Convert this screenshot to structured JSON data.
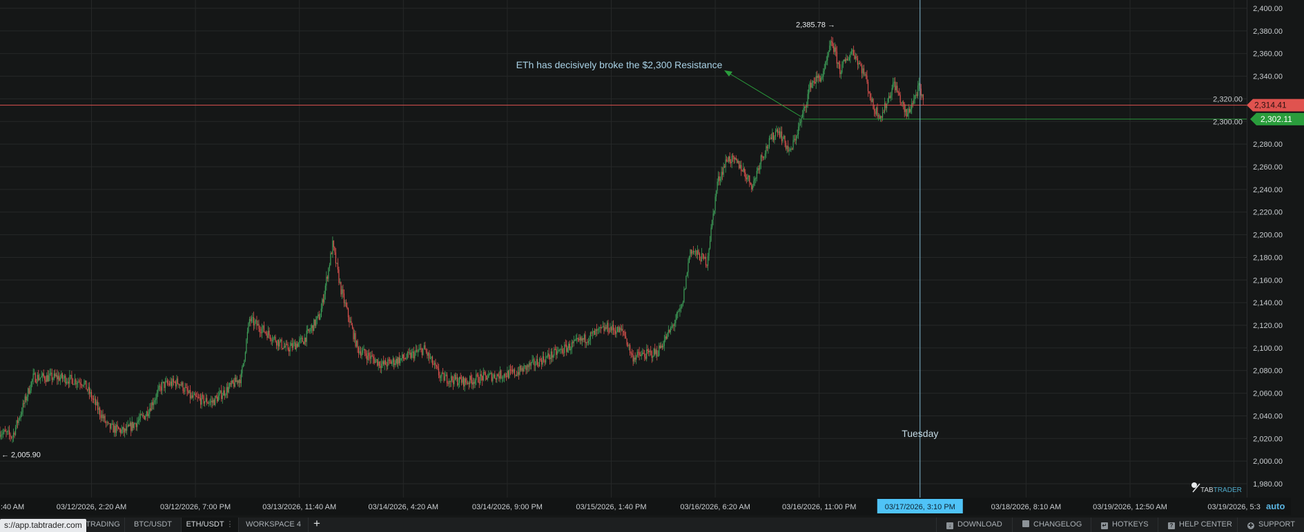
{
  "app": {
    "url_tooltip": "s://app.tabtrader.com",
    "logo": "TABTRADER"
  },
  "colors": {
    "background": "#151717",
    "grid": "#262828",
    "up": "#3fa35b",
    "down": "#e0534f",
    "resistance_line": "#e0534f",
    "bid_line": "#2a9d3c",
    "crosshair": "#7fb8d0",
    "highlight": "#4fc3f7",
    "annotation": "#a9d2e6"
  },
  "chart_data": {
    "type": "candlestick",
    "symbol": "ETH/USDT",
    "ylim": [
      1970,
      2410
    ],
    "y_ticks": [
      "2,400.00",
      "2,380.00",
      "2,360.00",
      "2,340.00",
      "2,320.00",
      "2,300.00",
      "2,280.00",
      "2,260.00",
      "2,240.00",
      "2,220.00",
      "2,200.00",
      "2,180.00",
      "2,160.00",
      "2,140.00",
      "2,120.00",
      "2,100.00",
      "2,080.00",
      "2,060.00",
      "2,040.00",
      "2,020.00",
      "2,000.00",
      "1,980.00"
    ],
    "x_ticks": [
      ":40 AM",
      "03/12/2026, 2:20 AM",
      "03/12/2026, 7:00 PM",
      "03/13/2026, 11:40 AM",
      "03/14/2026, 4:20 AM",
      "03/14/2026, 9:00 PM",
      "03/15/2026, 1:40 PM",
      "03/16/2026, 6:20 AM",
      "03/16/2026, 11:00 PM",
      "03/17/2026, 3:10 PM",
      "03/18/2026, 8:10 AM",
      "03/19/2026, 12:50 AM",
      "03/19/2026, 5:3"
    ],
    "x_tick_times": [
      "2026-03-11T09:40",
      "2026-03-12T02:20",
      "2026-03-12T19:00",
      "2026-03-13T11:40",
      "2026-03-14T04:20",
      "2026-03-14T21:00",
      "2026-03-15T13:40",
      "2026-03-16T06:20",
      "2026-03-16T23:00",
      "2026-03-17T15:10",
      "2026-03-18T08:10",
      "2026-03-19T00:50",
      "2026-03-19T17:30"
    ],
    "highlighted_x_tick": "03/17/2026, 3:10 PM",
    "approx_price_path": [
      [
        "2026-03-11T11:40",
        2026
      ],
      [
        "2026-03-11T13:40",
        2022
      ],
      [
        "2026-03-11T17:00",
        2074
      ],
      [
        "2026-03-11T21:00",
        2074
      ],
      [
        "2026-03-12T01:00",
        2070
      ],
      [
        "2026-03-12T05:00",
        2030
      ],
      [
        "2026-03-12T07:40",
        2026
      ],
      [
        "2026-03-12T11:00",
        2041
      ],
      [
        "2026-03-12T13:40",
        2067
      ],
      [
        "2026-03-12T16:20",
        2070
      ],
      [
        "2026-03-12T18:20",
        2056
      ],
      [
        "2026-03-12T21:40",
        2052
      ],
      [
        "2026-03-13T02:20",
        2074
      ],
      [
        "2026-03-13T03:40",
        2125
      ],
      [
        "2026-03-13T06:20",
        2114
      ],
      [
        "2026-03-13T09:40",
        2099
      ],
      [
        "2026-03-13T12:20",
        2107
      ],
      [
        "2026-03-13T15:00",
        2129
      ],
      [
        "2026-03-13T17:00",
        2191
      ],
      [
        "2026-03-13T18:20",
        2151
      ],
      [
        "2026-03-13T21:00",
        2099
      ],
      [
        "2026-03-14T01:00",
        2085
      ],
      [
        "2026-03-14T05:00",
        2092
      ],
      [
        "2026-03-14T07:40",
        2099
      ],
      [
        "2026-03-14T10:20",
        2074
      ],
      [
        "2026-03-14T14:20",
        2070
      ],
      [
        "2026-03-14T17:00",
        2074
      ],
      [
        "2026-03-14T22:20",
        2078
      ],
      [
        "2026-03-15T02:20",
        2089
      ],
      [
        "2026-03-15T07:40",
        2103
      ],
      [
        "2026-03-15T13:00",
        2118
      ],
      [
        "2026-03-15T15:40",
        2114
      ],
      [
        "2026-03-15T17:00",
        2092
      ],
      [
        "2026-03-15T21:00",
        2096
      ],
      [
        "2026-03-15T23:00",
        2114
      ],
      [
        "2026-03-16T01:00",
        2136
      ],
      [
        "2026-03-16T02:20",
        2187
      ],
      [
        "2026-03-16T05:00",
        2176
      ],
      [
        "2026-03-16T06:40",
        2246
      ],
      [
        "2026-03-16T08:20",
        2268
      ],
      [
        "2026-03-16T10:20",
        2261
      ],
      [
        "2026-03-16T12:20",
        2243
      ],
      [
        "2026-03-16T13:40",
        2268
      ],
      [
        "2026-03-16T16:20",
        2294
      ],
      [
        "2026-03-16T18:20",
        2272
      ],
      [
        "2026-03-16T20:20",
        2305
      ],
      [
        "2026-03-16T21:40",
        2334
      ],
      [
        "2026-03-16T23:40",
        2341
      ],
      [
        "2026-03-17T01:00",
        2371
      ],
      [
        "2026-03-17T02:20",
        2345
      ],
      [
        "2026-03-17T04:20",
        2363
      ],
      [
        "2026-03-17T06:20",
        2341
      ],
      [
        "2026-03-17T07:40",
        2312
      ],
      [
        "2026-03-17T09:00",
        2305
      ],
      [
        "2026-03-17T11:00",
        2334
      ],
      [
        "2026-03-17T13:00",
        2305
      ],
      [
        "2026-03-17T15:00",
        2330
      ],
      [
        "2026-03-17T15:40",
        2316
      ]
    ],
    "high_label": "2,385.78 →",
    "low_label": "← 2,005.90",
    "high_value": 2385.78,
    "low_value": 2005.9,
    "last_price": {
      "value": 2314.41,
      "label": "2,314.41"
    },
    "bid_price": {
      "value": 2302.11,
      "label": "2,302.11"
    },
    "annotation": "ETh has decisively broke the $2,300 Resistance",
    "crosshair_time": "2026-03-17T15:10",
    "crosshair_day": "Tuesday",
    "scale_mode": "auto",
    "grid": true
  },
  "tabs": [
    {
      "label": "TRADING"
    },
    {
      "label": "BTC/USDT"
    },
    {
      "label": "ETH/USDT",
      "active": true
    },
    {
      "label": "WORKSPACE 4"
    }
  ],
  "add_tab": "+",
  "footer": [
    {
      "label": "DOWNLOAD",
      "icon": "download-icon"
    },
    {
      "label": "CHANGELOG",
      "icon": "changelog-icon"
    },
    {
      "label": "HOTKEYS",
      "icon": "keyboard-icon"
    },
    {
      "label": "HELP CENTER",
      "icon": "help-icon"
    },
    {
      "label": "SUPPORT",
      "icon": "support-icon"
    }
  ]
}
